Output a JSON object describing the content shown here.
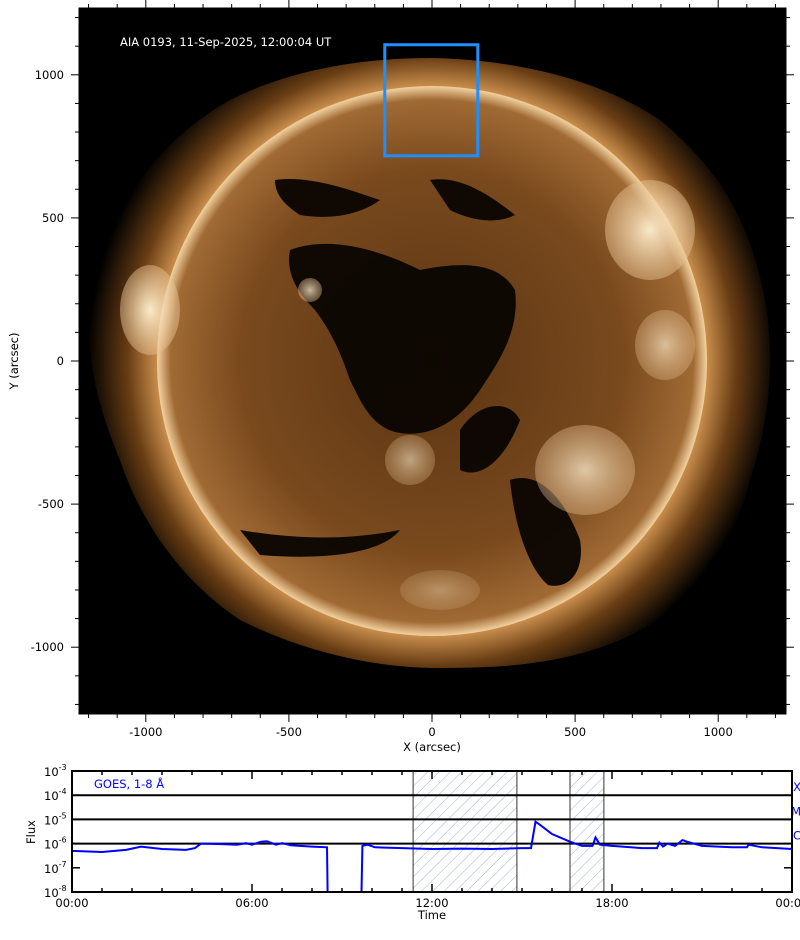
{
  "chart_data": [
    {
      "type": "image",
      "title": "AIA 0193, 11-Sep-2025, 12:00:04 UT",
      "xlabel": "X (arcsec)",
      "ylabel": "Y (arcsec)",
      "xlim": [
        -1235,
        1235
      ],
      "ylim": [
        -1235,
        1235
      ],
      "xticks": [
        -1000,
        -500,
        0,
        500,
        1000
      ],
      "yticks": [
        -1000,
        -500,
        0,
        500,
        1000
      ],
      "minor_tick_step": 100,
      "solar_radius_arcsec": 962,
      "colormap": "sdoaia193",
      "region_box": {
        "x": [
          -165,
          160
        ],
        "y": [
          717,
          1105
        ],
        "color": "#1e8fff"
      }
    },
    {
      "type": "line",
      "title": "",
      "legend": "GOES, 1-8 Å",
      "xlabel": "Time",
      "ylabel": "Flux",
      "yscale": "log",
      "ylim": [
        1e-08,
        0.001
      ],
      "xlim_hours": [
        0,
        24
      ],
      "xtick_labels": [
        "00:00",
        "06:00",
        "12:00",
        "18:00",
        "00:00"
      ],
      "ytick_exponents": [
        "-3",
        "-4",
        "-5",
        "-6",
        "-7",
        "-8"
      ],
      "flare_class_lines": [
        {
          "label": "X",
          "flux": 0.0001
        },
        {
          "label": "M",
          "flux": 1e-05
        },
        {
          "label": "C",
          "flux": 1e-06
        }
      ],
      "shaded_intervals_hours": [
        [
          11.37,
          14.83
        ],
        [
          16.6,
          17.73
        ]
      ],
      "line_color": "#0000ff",
      "series": [
        {
          "name": "GOES, 1-8 Å",
          "hours": [
            0,
            1,
            1.8,
            2.3,
            3,
            3.8,
            4.1,
            4.3,
            5,
            5.5,
            5.8,
            6,
            6.3,
            6.5,
            6.8,
            7,
            7.3,
            7.6,
            8,
            8.5,
            8.52,
            9.65,
            9.68,
            9.85,
            10.1,
            11,
            12,
            13,
            14,
            15,
            15.3,
            15.45,
            15.6,
            16,
            16.6,
            17,
            17.35,
            17.45,
            17.6,
            18,
            19,
            19.5,
            19.58,
            19.7,
            19.85,
            20.1,
            20.35,
            20.5,
            21,
            22,
            22.5,
            22.55,
            23,
            24
          ],
          "flux": [
            5e-07,
            4.5e-07,
            5.5e-07,
            7.5e-07,
            6e-07,
            5.5e-07,
            6.5e-07,
            1e-06,
            9.5e-07,
            9e-07,
            1.05e-06,
            9e-07,
            1.2e-06,
            1.25e-06,
            9e-07,
            1.05e-06,
            8.5e-07,
            8e-07,
            7.5e-07,
            7e-07,
            1e-08,
            1e-08,
            8e-07,
            9e-07,
            7e-07,
            6.5e-07,
            6e-07,
            6.2e-07,
            6e-07,
            6.5e-07,
            6.5e-07,
            8e-06,
            6e-06,
            2.5e-06,
            1.2e-06,
            8e-07,
            8e-07,
            1.8e-06,
            9e-07,
            8e-07,
            6.5e-07,
            6.5e-07,
            1.1e-06,
            7.5e-07,
            1e-06,
            8e-07,
            1.4e-06,
            1.2e-06,
            8e-07,
            7e-07,
            7e-07,
            9e-07,
            7e-07,
            6e-07
          ]
        }
      ]
    }
  ]
}
